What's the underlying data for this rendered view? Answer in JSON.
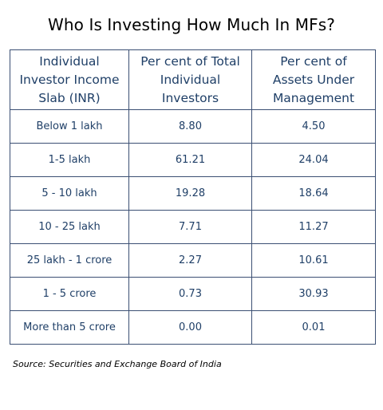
{
  "title": "Who Is Investing How Much In MFs?",
  "source": "Source: Securities and Exchange Board of India",
  "chart_data": {
    "type": "table",
    "title": "Who Is Investing How Much In MFs?",
    "columns": [
      "Individual Investor Income Slab (INR)",
      "Per cent of Total Individual Investors",
      "Per cent of Assets Under Management"
    ],
    "header_lines": [
      [
        "Individual",
        "Investor Income",
        "Slab (INR)"
      ],
      [
        "Per cent of Total",
        "Individual",
        "Investors"
      ],
      [
        "Per cent of",
        "Assets Under",
        "Management"
      ]
    ],
    "rows": [
      [
        "Below 1 lakh",
        "8.80",
        "4.50"
      ],
      [
        "1-5 lakh",
        "61.21",
        "24.04"
      ],
      [
        "5 - 10 lakh",
        "19.28",
        "18.64"
      ],
      [
        "10 - 25 lakh",
        "7.71",
        "11.27"
      ],
      [
        "25 lakh - 1 crore",
        "2.27",
        "10.61"
      ],
      [
        "1 - 5 crore",
        "0.73",
        "30.93"
      ],
      [
        "More than 5 crore",
        "0.00",
        "0.01"
      ]
    ],
    "source": "Source: Securities and Exchange Board of India"
  }
}
